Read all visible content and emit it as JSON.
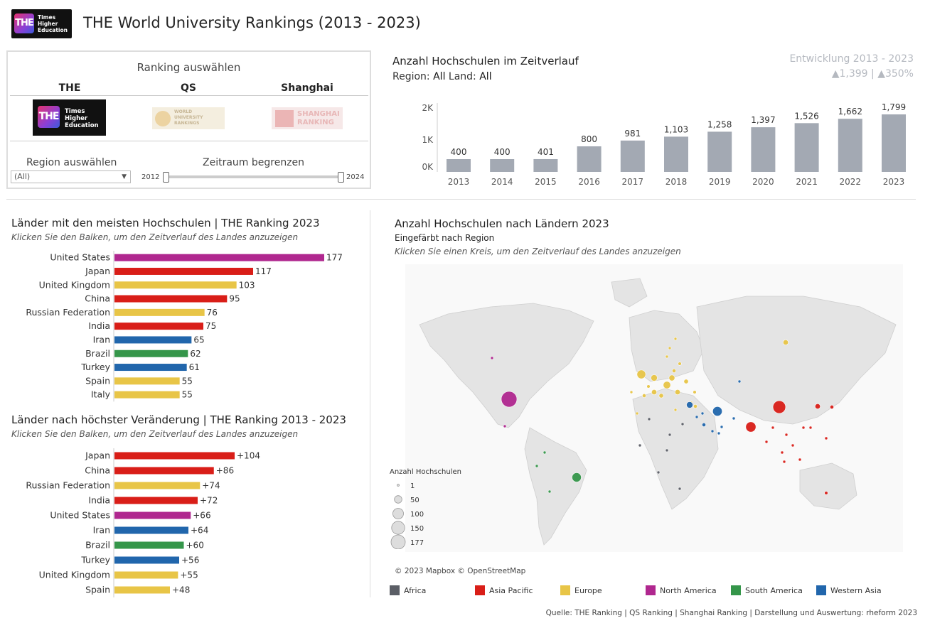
{
  "header": {
    "logo_text": "THE",
    "logo_sub": [
      "Times",
      "Higher",
      "Education"
    ],
    "title": "THE World University Rankings (2013 - 2023)"
  },
  "selector": {
    "title": "Ranking auswählen",
    "tabs": [
      {
        "label": "THE"
      },
      {
        "label": "QS",
        "logo_text": [
          "WORLD",
          "UNIVERSITY",
          "RANKINGS"
        ]
      },
      {
        "label": "Shanghai",
        "logo_text": [
          "SHANGHAI",
          "RANKING"
        ]
      }
    ],
    "region_label": "Region auswählen",
    "region_value": "(All)",
    "period_label": "Zeitraum begrenzen",
    "period_start": "2012",
    "period_end": "2024"
  },
  "timeline": {
    "title": "Anzahl Hochschulen im Zeitverlauf",
    "filter_region_label": "Region:",
    "filter_region_value": "All",
    "filter_land_label": "Land:",
    "filter_land_value": "All",
    "dev_title": "Entwicklung 2013 - 2023",
    "dev_value": "▲1,399 | ▲350%"
  },
  "top_countries": {
    "title": "Länder mit den meisten Hochschulen | THE Ranking  2023",
    "subtitle": "Klicken Sie den Balken, um den Zeitverlauf des Landes anzuzeigen"
  },
  "change_countries": {
    "title": "Länder nach höchster Veränderung | THE Ranking 2013 - 2023",
    "subtitle": "Klicken Sie den Balken, um den Zeitverlauf des Landes anzuzeigen"
  },
  "map": {
    "title": "Anzahl Hochschulen nach Ländern 2023",
    "subtitle": "Eingefärbt nach Region",
    "hint": "Klicken Sie einen Kreis, um den Zeitverlauf des Landes anzuzeigen",
    "size_legend_title": "Anzahl Hochschulen",
    "size_legend": [
      "1",
      "50",
      "100",
      "150",
      "177"
    ],
    "attribution": "© 2023 Mapbox  © OpenStreetMap"
  },
  "region_legend": [
    {
      "name": "Africa",
      "color": "#5b5e66"
    },
    {
      "name": "Asia Pacific",
      "color": "#d91e18"
    },
    {
      "name": "Europe",
      "color": "#e8c547"
    },
    {
      "name": "North America",
      "color": "#b0278f"
    },
    {
      "name": "South America",
      "color": "#35964a"
    },
    {
      "name": "Western Asia",
      "color": "#2166ac"
    }
  ],
  "source": "Quelle: THE Ranking | QS Ranking | Shanghai Ranking | Darstellung und Auswertung: rheform 2023",
  "chart_data": [
    {
      "type": "bar",
      "title": "Anzahl Hochschulen im Zeitverlauf",
      "categories": [
        "2013",
        "2014",
        "2015",
        "2016",
        "2017",
        "2018",
        "2019",
        "2020",
        "2021",
        "2022",
        "2023"
      ],
      "values": [
        400,
        400,
        401,
        800,
        981,
        1103,
        1258,
        1397,
        1526,
        1662,
        1799
      ],
      "value_labels": [
        "400",
        "400",
        "401",
        "800",
        "981",
        "1,103",
        "1,258",
        "1,397",
        "1,526",
        "1,662",
        "1,799"
      ],
      "yticks": [
        "0K",
        "1K",
        "2K"
      ],
      "ylim": [
        0,
        2000
      ],
      "color": "#a3a9b3"
    },
    {
      "type": "bar",
      "orientation": "horizontal",
      "title": "Länder mit den meisten Hochschulen | THE Ranking  2023",
      "categories": [
        "United States",
        "Japan",
        "United Kingdom",
        "China",
        "Russian Federation",
        "India",
        "Iran",
        "Brazil",
        "Turkey",
        "Spain",
        "Italy"
      ],
      "values": [
        177,
        117,
        103,
        95,
        76,
        75,
        65,
        62,
        61,
        55,
        55
      ],
      "value_labels": [
        "177",
        "117",
        "103",
        "95",
        "76",
        "75",
        "65",
        "62",
        "61",
        "55",
        "55"
      ],
      "regions": [
        "North America",
        "Asia Pacific",
        "Europe",
        "Asia Pacific",
        "Europe",
        "Asia Pacific",
        "Western Asia",
        "South America",
        "Western Asia",
        "Europe",
        "Europe"
      ]
    },
    {
      "type": "bar",
      "orientation": "horizontal",
      "title": "Länder nach höchster Veränderung | THE Ranking 2013 - 2023",
      "categories": [
        "Japan",
        "China",
        "Russian Federation",
        "India",
        "United States",
        "Iran",
        "Brazil",
        "Turkey",
        "United Kingdom",
        "Spain"
      ],
      "values": [
        104,
        86,
        74,
        72,
        66,
        64,
        60,
        56,
        55,
        48
      ],
      "value_labels": [
        "+104",
        "+86",
        "+74",
        "+72",
        "+66",
        "+64",
        "+60",
        "+56",
        "+55",
        "+48"
      ],
      "regions": [
        "Asia Pacific",
        "Asia Pacific",
        "Europe",
        "Asia Pacific",
        "North America",
        "Western Asia",
        "South America",
        "Western Asia",
        "Europe",
        "Europe"
      ]
    }
  ]
}
